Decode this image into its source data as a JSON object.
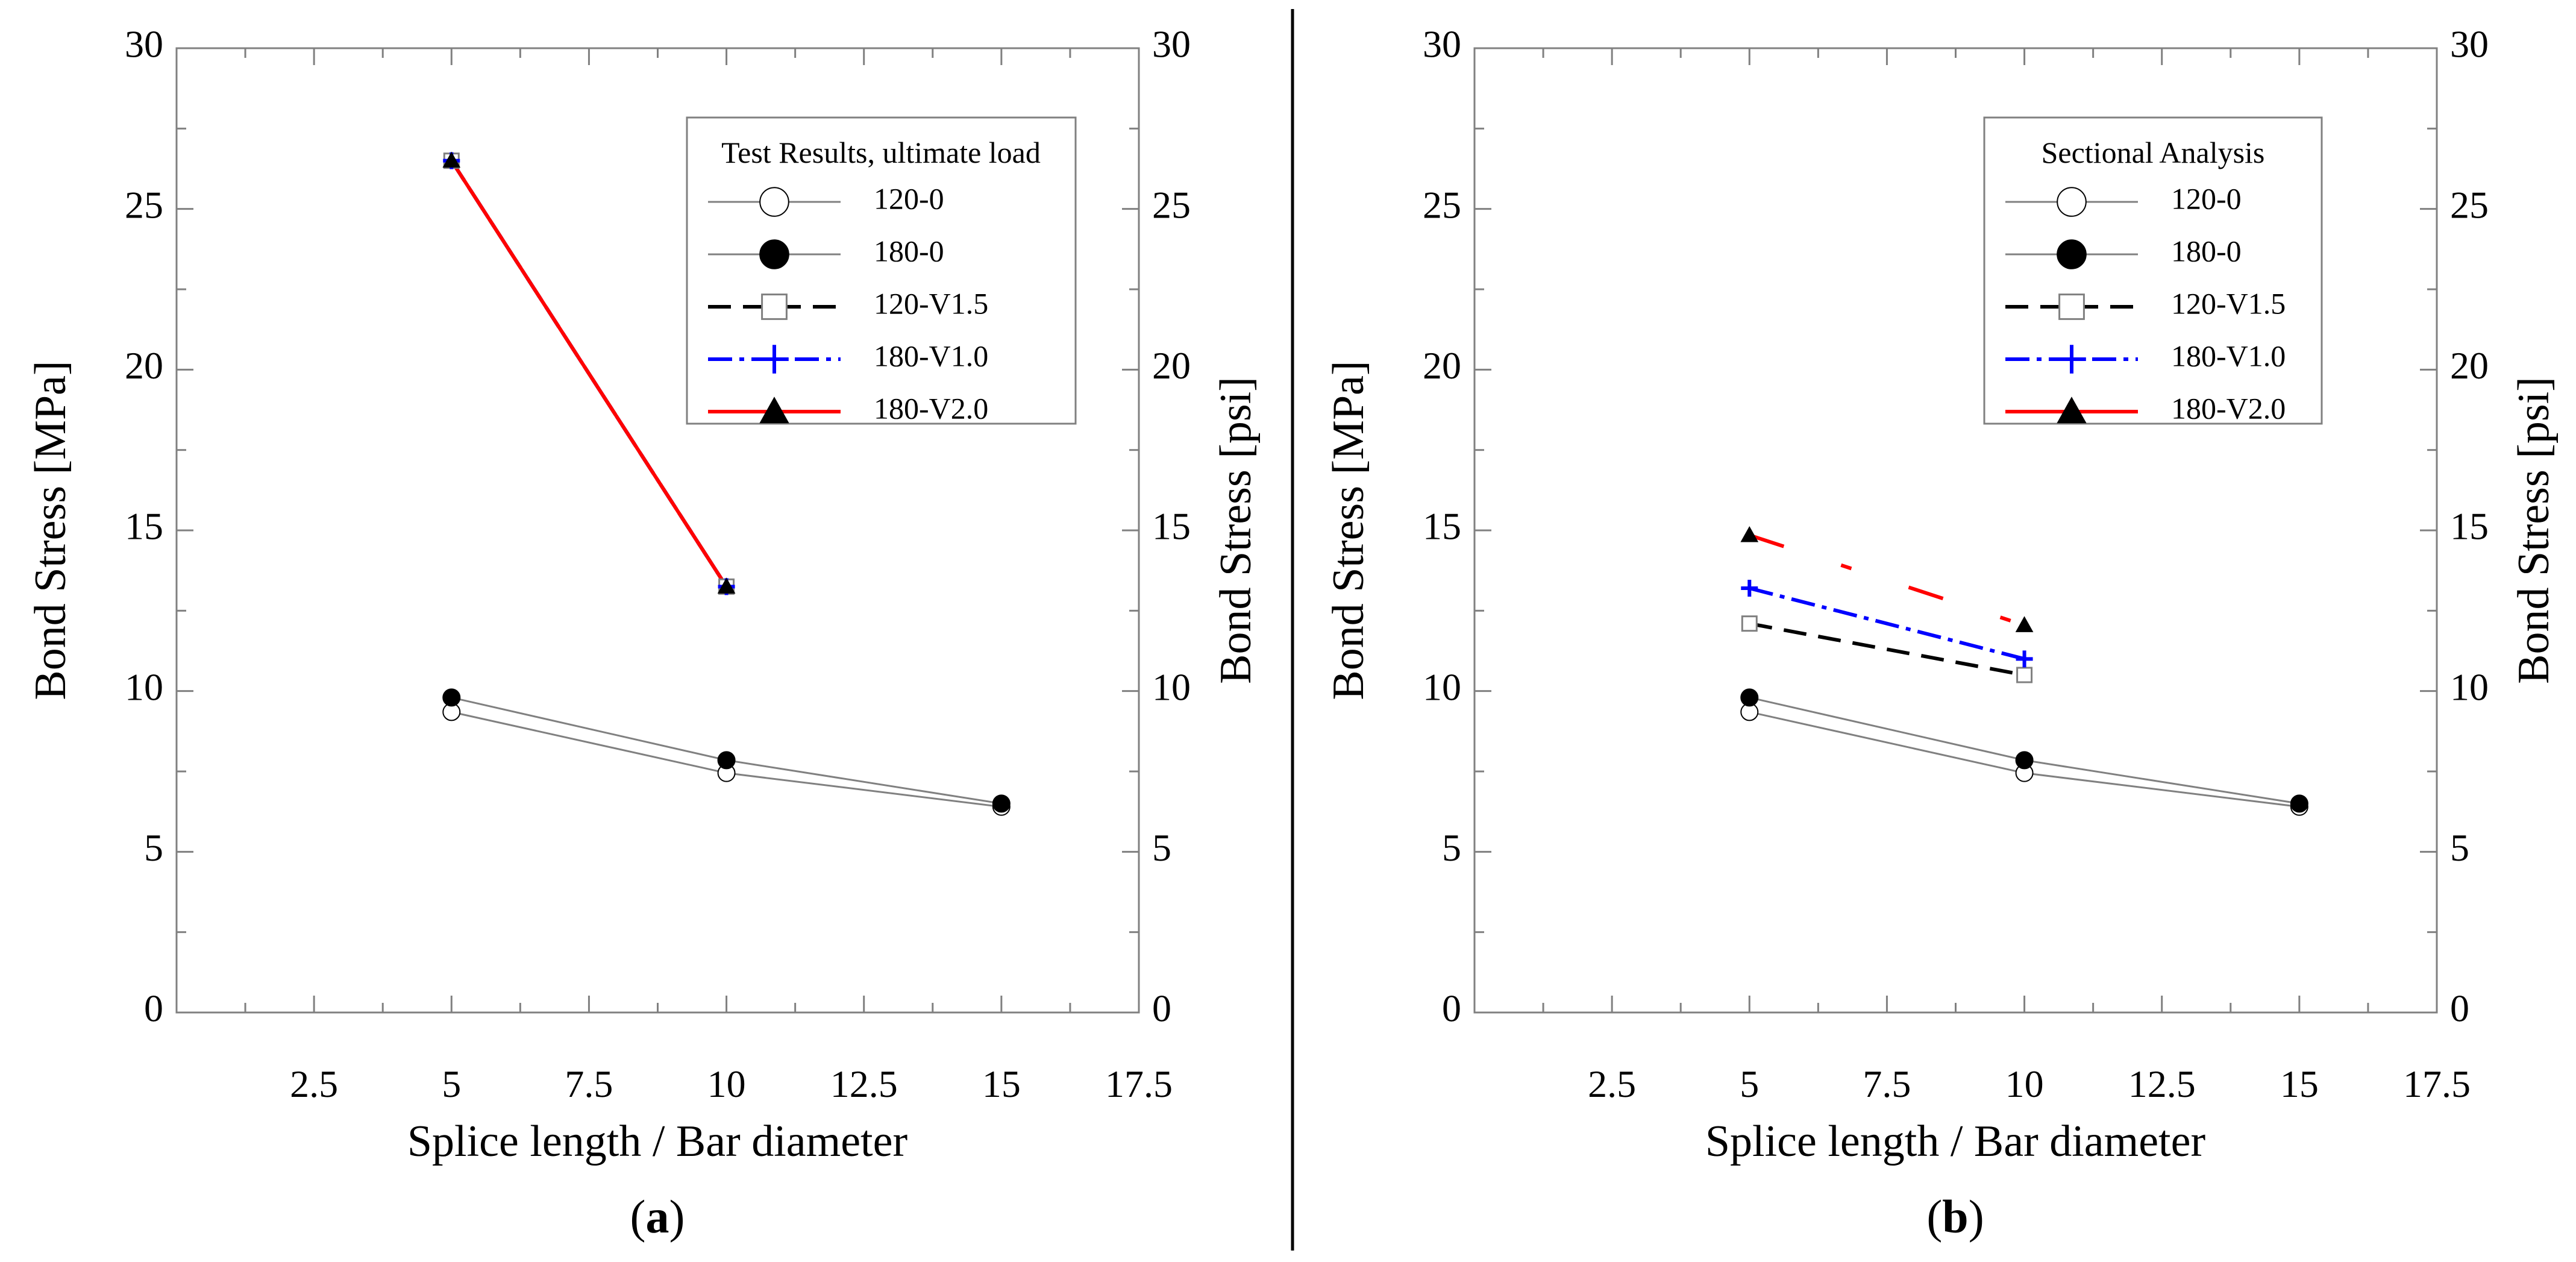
{
  "figure": {
    "panels": [
      {
        "label_open": "(",
        "label_letter": "a",
        "label_close": ")"
      },
      {
        "label_open": "(",
        "label_letter": "b",
        "label_close": ")"
      }
    ]
  },
  "chart_data": [
    {
      "type": "line",
      "panel": "a",
      "title": "",
      "xlabel": "Splice length / Bar diameter",
      "ylabel": "Bond Stress [MPa]",
      "ylabel_right": "Bond Stress [psi]",
      "xlim": [
        0,
        17.5
      ],
      "ylim": [
        0,
        30
      ],
      "xticks": [
        "2.5",
        "5",
        "7.5",
        "10",
        "12.5",
        "15",
        "17.5"
      ],
      "yticks": [
        "0",
        "5",
        "10",
        "15",
        "20",
        "25",
        "30"
      ],
      "yticks_right": [
        "0",
        "5",
        "10",
        "15",
        "20",
        "25",
        "30"
      ],
      "grid": false,
      "legend": {
        "title": "Test Results, ultimate load",
        "position": "top-right"
      },
      "series": [
        {
          "name": "120-0",
          "x": [
            5,
            10,
            15
          ],
          "values": [
            9.35,
            7.45,
            6.4
          ],
          "color": "#808080",
          "dash": "solid",
          "marker": "circle-open"
        },
        {
          "name": "180-0",
          "x": [
            5,
            10,
            15
          ],
          "values": [
            9.8,
            7.85,
            6.5
          ],
          "color": "#808080",
          "dash": "solid",
          "marker": "circle-filled"
        },
        {
          "name": "120-V1.5",
          "x": [
            5,
            10
          ],
          "values": [
            26.5,
            13.25
          ],
          "color": "#000000",
          "dash": "long-dash",
          "marker": "square-open"
        },
        {
          "name": "180-V1.0",
          "x": [
            5,
            10
          ],
          "values": [
            26.5,
            13.25
          ],
          "color": "#0000ff",
          "dash": "dash-dot",
          "marker": "plus"
        },
        {
          "name": "180-V2.0",
          "x": [
            5,
            10
          ],
          "values": [
            26.5,
            13.25
          ],
          "color": "#ff0000",
          "dash": "solid",
          "marker": "triangle-filled"
        }
      ]
    },
    {
      "type": "line",
      "panel": "b",
      "title": "",
      "xlabel": "Splice length / Bar diameter",
      "ylabel": "Bond Stress [MPa]",
      "ylabel_right": "Bond Stress [psi]",
      "xlim": [
        0,
        17.5
      ],
      "ylim": [
        0,
        30
      ],
      "xticks": [
        "2.5",
        "5",
        "7.5",
        "10",
        "12.5",
        "15",
        "17.5"
      ],
      "yticks": [
        "0",
        "5",
        "10",
        "15",
        "20",
        "25",
        "30"
      ],
      "yticks_right": [
        "0",
        "5",
        "10",
        "15",
        "20",
        "25",
        "30"
      ],
      "grid": false,
      "legend": {
        "title": "Sectional Analysis",
        "position": "top-right"
      },
      "series": [
        {
          "name": "120-0",
          "x": [
            5,
            10,
            15
          ],
          "values": [
            9.35,
            7.45,
            6.4
          ],
          "color": "#808080",
          "dash": "solid",
          "marker": "circle-open"
        },
        {
          "name": "180-0",
          "x": [
            5,
            10,
            15
          ],
          "values": [
            9.8,
            7.85,
            6.5
          ],
          "color": "#808080",
          "dash": "solid",
          "marker": "circle-filled"
        },
        {
          "name": "120-V1.5",
          "x": [
            5,
            10
          ],
          "values": [
            12.1,
            10.5
          ],
          "color": "#000000",
          "dash": "long-dash",
          "marker": "square-open"
        },
        {
          "name": "180-V1.0",
          "x": [
            5,
            10
          ],
          "values": [
            13.2,
            11.0
          ],
          "color": "#0000ff",
          "dash": "dash-dot",
          "marker": "plus"
        },
        {
          "name": "180-V2.0",
          "x": [
            5,
            10
          ],
          "values": [
            14.85,
            12.05
          ],
          "color": "#ff0000",
          "dash": "dash-dot-dot",
          "marker": "triangle-filled"
        }
      ]
    }
  ]
}
